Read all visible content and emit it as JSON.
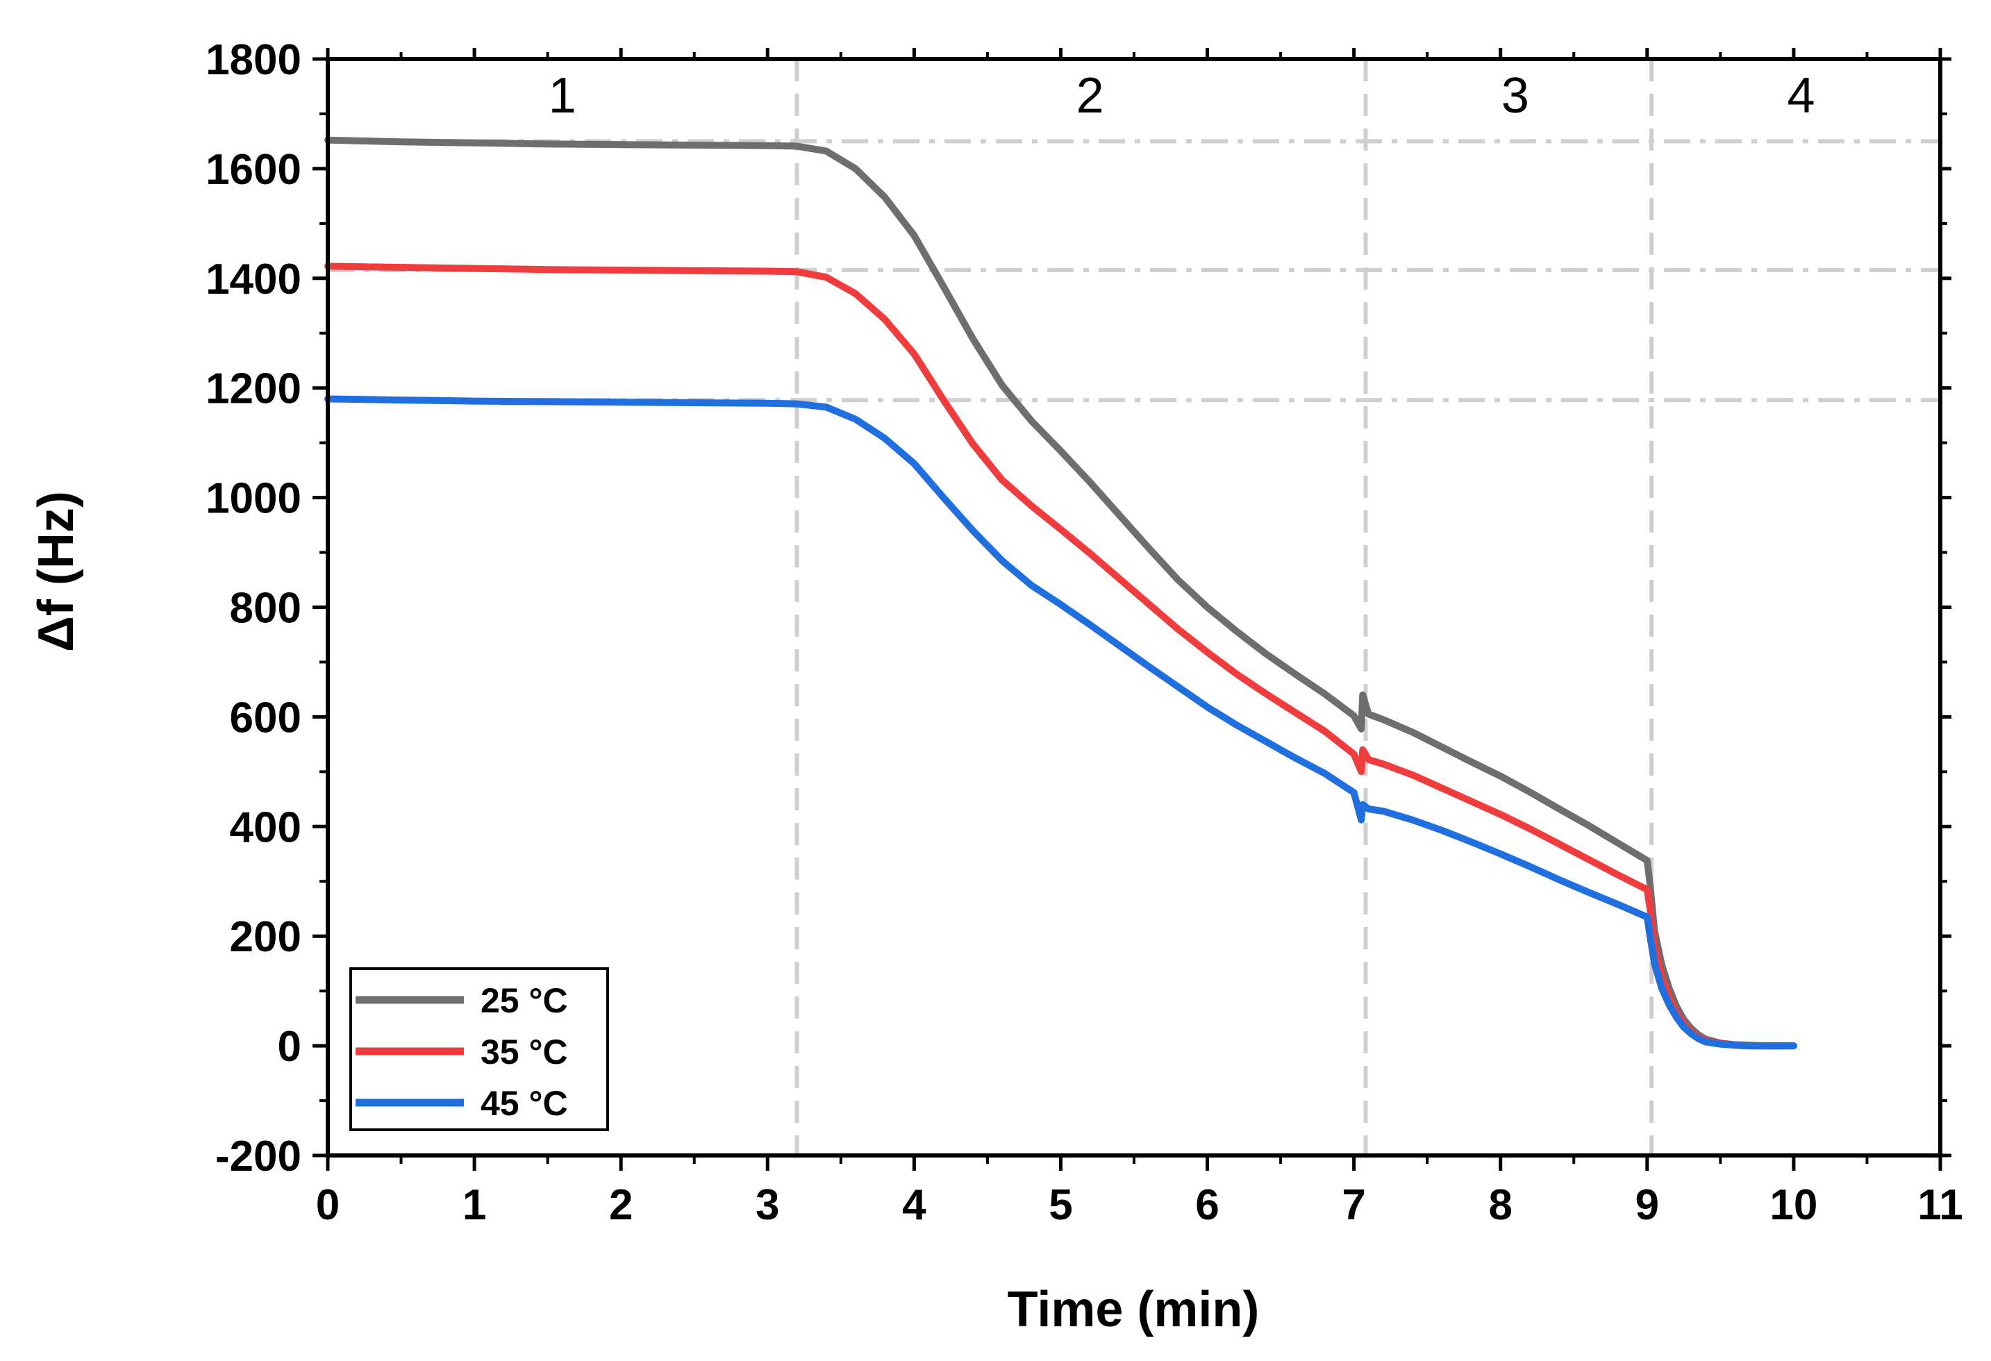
{
  "chart_data": {
    "type": "line",
    "title": "",
    "xlabel": "Time (min)",
    "ylabel": "Δf (Hz)",
    "xlim": [
      0,
      11
    ],
    "ylim": [
      -200,
      1800
    ],
    "xticks": [
      0,
      1,
      2,
      3,
      4,
      5,
      6,
      7,
      8,
      9,
      10,
      11
    ],
    "yticks": [
      -200,
      0,
      200,
      400,
      600,
      800,
      1000,
      1200,
      1400,
      1600,
      1800
    ],
    "grid": false,
    "legend_position": "bottom-left",
    "regions": [
      {
        "label": "1",
        "x_center": 1.6
      },
      {
        "label": "2",
        "x_center": 5.2
      },
      {
        "label": "3",
        "x_center": 8.1
      },
      {
        "label": "4",
        "x_center": 10.05
      }
    ],
    "region_boundaries": [
      3.2,
      7.08,
      9.03
    ],
    "reference_levels": [
      1650,
      1415,
      1178
    ],
    "series": [
      {
        "name": "25 °C",
        "color": "#6e6e6e",
        "x": [
          0,
          0.5,
          1,
          1.5,
          2,
          2.5,
          3,
          3.2,
          3.4,
          3.6,
          3.8,
          4.0,
          4.2,
          4.4,
          4.6,
          4.8,
          5.0,
          5.2,
          5.4,
          5.6,
          5.8,
          6.0,
          6.2,
          6.4,
          6.6,
          6.8,
          7.0,
          7.05,
          7.06,
          7.1,
          7.2,
          7.4,
          7.6,
          7.8,
          8.0,
          8.2,
          8.4,
          8.6,
          8.8,
          9.0,
          9.02,
          9.05,
          9.1,
          9.15,
          9.2,
          9.25,
          9.3,
          9.35,
          9.4,
          9.5,
          9.6,
          9.7,
          9.8,
          9.9,
          10.0
        ],
        "y": [
          1652,
          1649,
          1647,
          1645,
          1644,
          1643,
          1642,
          1641,
          1632,
          1600,
          1548,
          1478,
          1385,
          1290,
          1205,
          1140,
          1085,
          1028,
          968,
          908,
          850,
          800,
          756,
          715,
          678,
          642,
          602,
          578,
          640,
          605,
          595,
          572,
          545,
          518,
          492,
          463,
          432,
          402,
          370,
          338,
          295,
          210,
          148,
          105,
          72,
          48,
          32,
          20,
          12,
          5,
          2,
          1,
          0,
          0,
          0
        ]
      },
      {
        "name": "35 °C",
        "color": "#f03c3c",
        "x": [
          0,
          0.5,
          1,
          1.5,
          2,
          2.5,
          3,
          3.2,
          3.4,
          3.6,
          3.8,
          4.0,
          4.2,
          4.4,
          4.6,
          4.8,
          5.0,
          5.2,
          5.4,
          5.6,
          5.8,
          6.0,
          6.2,
          6.4,
          6.6,
          6.8,
          7.0,
          7.05,
          7.06,
          7.1,
          7.2,
          7.4,
          7.6,
          7.8,
          8.0,
          8.2,
          8.4,
          8.6,
          8.8,
          9.0,
          9.02,
          9.05,
          9.1,
          9.15,
          9.2,
          9.25,
          9.3,
          9.35,
          9.4,
          9.5,
          9.6,
          9.7,
          9.8,
          9.9,
          10.0
        ],
        "y": [
          1422,
          1420,
          1418,
          1416,
          1415,
          1414,
          1413,
          1412,
          1402,
          1372,
          1325,
          1262,
          1178,
          1098,
          1032,
          985,
          942,
          898,
          852,
          806,
          760,
          718,
          678,
          642,
          608,
          574,
          532,
          500,
          540,
          522,
          514,
          494,
          470,
          446,
          422,
          396,
          368,
          340,
          312,
          285,
          250,
          180,
          125,
          88,
          60,
          40,
          26,
          16,
          9,
          4,
          1,
          0,
          0,
          0,
          0
        ]
      },
      {
        "name": "45 °C",
        "color": "#1f6fe0",
        "x": [
          0,
          0.5,
          1,
          1.5,
          2,
          2.5,
          3,
          3.2,
          3.4,
          3.6,
          3.8,
          4.0,
          4.2,
          4.4,
          4.6,
          4.8,
          5.0,
          5.2,
          5.4,
          5.6,
          5.8,
          6.0,
          6.2,
          6.4,
          6.6,
          6.8,
          7.0,
          7.05,
          7.06,
          7.1,
          7.2,
          7.4,
          7.6,
          7.8,
          8.0,
          8.2,
          8.4,
          8.6,
          8.8,
          9.0,
          9.02,
          9.05,
          9.1,
          9.15,
          9.2,
          9.25,
          9.3,
          9.35,
          9.4,
          9.5,
          9.6,
          9.7,
          9.8,
          9.9,
          10.0
        ],
        "y": [
          1180,
          1178,
          1176,
          1175,
          1174,
          1173,
          1172,
          1171,
          1165,
          1143,
          1108,
          1062,
          1000,
          940,
          885,
          840,
          805,
          768,
          730,
          692,
          655,
          618,
          585,
          555,
          525,
          497,
          462,
          412,
          440,
          432,
          428,
          412,
          393,
          372,
          350,
          327,
          303,
          280,
          258,
          235,
          200,
          150,
          105,
          75,
          52,
          34,
          22,
          13,
          7,
          3,
          1,
          0,
          0,
          0,
          0
        ]
      }
    ]
  }
}
